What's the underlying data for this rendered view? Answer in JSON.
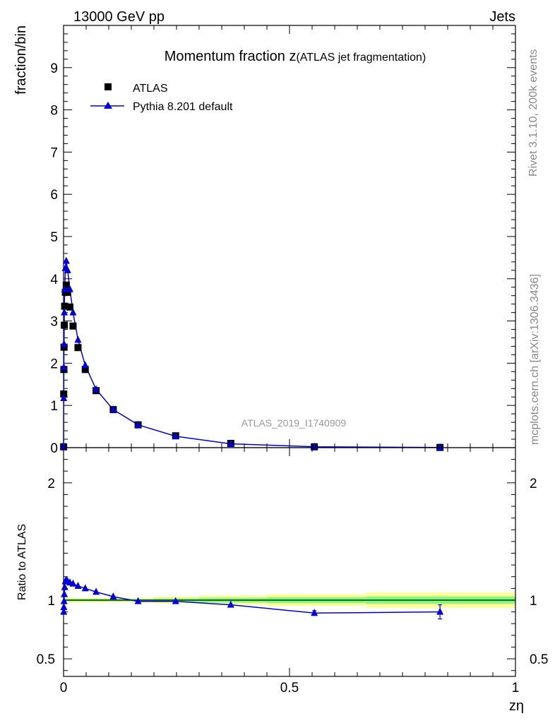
{
  "header": {
    "left": "13000 GeV pp",
    "right": "Jets"
  },
  "side_labels": {
    "rivet": "Rivet 3.1.10,  200k events",
    "mcplots": "mcplots.cern.ch [arXiv:1306.3436]"
  },
  "colors": {
    "data": "#000000",
    "mc": "#0000dd",
    "band_inner": "#7cfc7c",
    "band_outer": "#ffff99"
  },
  "chart_data": [
    {
      "type": "scatter",
      "title": "Momentum fraction z",
      "title_sub": "(ATLAS jet fragmentation)",
      "ylabel": "fraction/bin",
      "watermark": "ATLAS_2019_I1740909",
      "xlim": [
        0,
        1
      ],
      "ylim": [
        0,
        10
      ],
      "yticks": [
        "0",
        "1",
        "2",
        "3",
        "4",
        "5",
        "6",
        "7",
        "8",
        "9"
      ],
      "legend_position": "top-left",
      "series": [
        {
          "name": "ATLAS",
          "marker": "square",
          "x": [
            0.0002,
            0.0004,
            0.0007,
            0.0011,
            0.0017,
            0.0025,
            0.004,
            0.006,
            0.009,
            0.014,
            0.021,
            0.032,
            0.048,
            0.072,
            0.11,
            0.165,
            0.248,
            0.37,
            0.555,
            0.833
          ],
          "y": [
            0.02,
            1.27,
            1.85,
            2.38,
            2.9,
            3.35,
            3.68,
            3.85,
            3.68,
            3.33,
            2.88,
            2.37,
            1.85,
            1.35,
            0.9,
            0.54,
            0.28,
            0.1,
            0.02,
            0.005
          ]
        },
        {
          "name": "Pythia 8.201 default",
          "marker": "triangle",
          "x": [
            0.0002,
            0.0004,
            0.0007,
            0.0011,
            0.0017,
            0.0025,
            0.004,
            0.006,
            0.009,
            0.014,
            0.021,
            0.032,
            0.048,
            0.072,
            0.11,
            0.165,
            0.248,
            0.37,
            0.555,
            0.833
          ],
          "y": [
            0.02,
            1.17,
            1.9,
            2.45,
            3.2,
            3.75,
            4.25,
            4.42,
            4.2,
            3.75,
            3.2,
            2.55,
            1.95,
            1.38,
            0.9,
            0.54,
            0.27,
            0.09,
            0.02,
            0.005
          ]
        }
      ]
    },
    {
      "type": "line",
      "ylabel": "Ratio to ATLAS",
      "xlabel": "zη",
      "xlim": [
        0,
        1
      ],
      "ylim": [
        0.35,
        2.3
      ],
      "yticks": [
        "0.5",
        "1",
        "2"
      ],
      "xticks": [
        "0",
        "0.5",
        "1"
      ],
      "bands": [
        {
          "x0": 0,
          "x1": 0.2,
          "inner": 0.01,
          "outer": 0.02
        },
        {
          "x0": 0.2,
          "x1": 0.3,
          "inner": 0.015,
          "outer": 0.03
        },
        {
          "x0": 0.3,
          "x1": 0.45,
          "inner": 0.02,
          "outer": 0.04
        },
        {
          "x0": 0.45,
          "x1": 0.67,
          "inner": 0.025,
          "outer": 0.05
        },
        {
          "x0": 0.67,
          "x1": 1.0,
          "inner": 0.03,
          "outer": 0.065
        }
      ],
      "series": [
        {
          "name": "Pythia 8.201 default",
          "x": [
            0.0004,
            0.0007,
            0.0011,
            0.0017,
            0.0025,
            0.004,
            0.006,
            0.009,
            0.014,
            0.021,
            0.032,
            0.048,
            0.072,
            0.11,
            0.165,
            0.248,
            0.37,
            0.555,
            0.833
          ],
          "y": [
            0.9,
            0.94,
            0.99,
            1.05,
            1.11,
            1.16,
            1.17,
            1.16,
            1.15,
            1.14,
            1.12,
            1.1,
            1.07,
            1.03,
            0.99,
            0.99,
            0.96,
            0.89,
            0.9
          ],
          "err": [
            0,
            0,
            0,
            0,
            0,
            0,
            0,
            0,
            0,
            0,
            0,
            0,
            0,
            0,
            0,
            0,
            0,
            0.02,
            0.06
          ]
        }
      ]
    }
  ]
}
